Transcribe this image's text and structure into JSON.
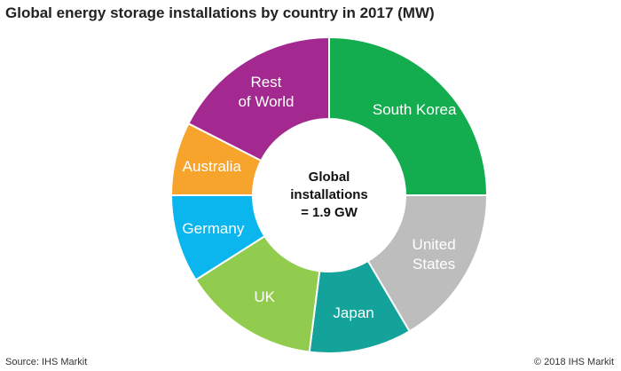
{
  "chart_data": {
    "type": "donut",
    "title": "Global energy storage installations by country in 2017 (MW)",
    "center_label": "Global\ninstallations\n= 1.9 GW",
    "categories": [
      "South Korea",
      "United\nStates",
      "Japan",
      "UK",
      "Germany",
      "Australia",
      "Rest\nof World"
    ],
    "values": [
      25,
      16.5,
      10.5,
      14,
      9,
      7.5,
      17.5
    ],
    "colors": [
      "#13ad4f",
      "#bdbdbd",
      "#14a39a",
      "#92cc4e",
      "#0bb6ee",
      "#f6a42c",
      "#a3288f"
    ],
    "source": "Source: IHS Markit",
    "copyright": "© 2018 IHS Markit"
  }
}
